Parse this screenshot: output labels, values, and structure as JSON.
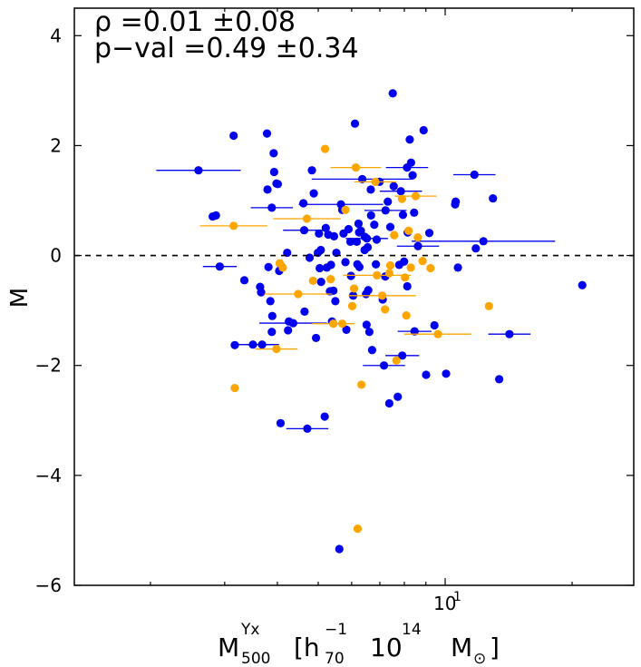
{
  "chart_data": {
    "type": "scatter",
    "x_scale": "log",
    "xlabel": {
      "base": "M",
      "sup": "Yx",
      "sub": "500",
      "units_text": "[h",
      "units_sup": "−1",
      "units_sub": "70",
      "units_mid": "10",
      "units_mid_sup": "14",
      "units_end": "M",
      "units_end_sub": "⊙",
      "close": "]"
    },
    "ylabel": "M",
    "xlim": [
      1.32,
      28.0
    ],
    "ylim": [
      -6,
      4.5
    ],
    "x_tick_labels": [
      {
        "base": "10",
        "sup": "1",
        "value": 10
      }
    ],
    "y_ticks": [
      4,
      2,
      0,
      -2,
      -4,
      -6
    ],
    "y_tick_labels": [
      "4",
      "2",
      "0",
      "−2",
      "−4",
      "−6"
    ],
    "reference_line": {
      "y": 0,
      "style": "dashed"
    },
    "stats": {
      "line1": "ρ =0.01 ±0.08",
      "line2": "p−val =0.49 ±0.34"
    },
    "series": [
      {
        "name": "blue",
        "color": "#0000ee",
        "points": [
          [
            2.6,
            1.55,
            0.1
          ],
          [
            2.81,
            0.71,
            0
          ],
          [
            2.86,
            0.73,
            0
          ],
          [
            2.92,
            -0.2,
            0.04
          ],
          [
            3.15,
            2.18,
            0
          ],
          [
            3.17,
            -1.63,
            0
          ],
          [
            3.34,
            -0.45,
            0
          ],
          [
            3.5,
            -1.62,
            0.05
          ],
          [
            3.68,
            -1.62,
            0.04
          ],
          [
            3.64,
            -0.57,
            0
          ],
          [
            3.66,
            -0.67,
            0
          ],
          [
            3.78,
            2.22,
            0
          ],
          [
            3.79,
            1.2,
            0
          ],
          [
            3.81,
            -0.21,
            0
          ],
          [
            3.85,
            -0.83,
            0
          ],
          [
            3.88,
            -1.39,
            0
          ],
          [
            3.89,
            -1.1,
            0
          ],
          [
            3.88,
            0.87,
            0.05
          ],
          [
            3.92,
            1.86,
            0
          ],
          [
            3.93,
            1.52,
            0
          ],
          [
            3.98,
            1.31,
            0
          ],
          [
            4.01,
            1.3,
            0
          ],
          [
            4.04,
            -0.28,
            0
          ],
          [
            4.07,
            -3.05,
            0
          ],
          [
            4.09,
            -0.2,
            0
          ],
          [
            4.22,
            0.05,
            0
          ],
          [
            4.24,
            -1.36,
            0
          ],
          [
            4.26,
            -1.2,
            0
          ],
          [
            4.36,
            -1.23,
            0.08
          ],
          [
            4.61,
            0.95,
            0
          ],
          [
            4.63,
            0.46,
            0.05
          ],
          [
            4.64,
            -1.02,
            0
          ],
          [
            4.71,
            -3.15,
            0.05
          ],
          [
            4.77,
            -0.04,
            0
          ],
          [
            4.83,
            1.55,
            0
          ],
          [
            4.88,
            1.13,
            0
          ],
          [
            4.94,
            -1.5,
            0
          ],
          [
            4.99,
            0.05,
            0
          ],
          [
            5.02,
            0.4,
            0
          ],
          [
            5.04,
            -0.23,
            0
          ],
          [
            5.07,
            0.1,
            0
          ],
          [
            5.08,
            -0.48,
            0
          ],
          [
            5.18,
            -2.93,
            0
          ],
          [
            5.21,
            0.5,
            0
          ],
          [
            5.24,
            -0.22,
            0
          ],
          [
            5.28,
            0.38,
            0
          ],
          [
            5.33,
            -0.65,
            0
          ],
          [
            5.36,
            -0.17,
            0
          ],
          [
            5.39,
            -1.2,
            0
          ],
          [
            5.43,
            -0.64,
            0
          ],
          [
            5.45,
            0.35,
            0
          ],
          [
            5.49,
            -0.83,
            0
          ],
          [
            5.52,
            0.05,
            0
          ],
          [
            5.61,
            -5.34,
            0
          ],
          [
            5.66,
            0.93,
            0.1
          ],
          [
            5.7,
            0.83,
            0
          ],
          [
            5.74,
            0.4,
            0
          ],
          [
            5.8,
            -0.12,
            0
          ],
          [
            5.83,
            -1.35,
            0
          ],
          [
            5.9,
            0.48,
            0
          ],
          [
            5.96,
            0.25,
            0
          ],
          [
            5.98,
            -0.37,
            0
          ],
          [
            6.05,
            -0.73,
            0
          ],
          [
            6.11,
            2.4,
            0
          ],
          [
            6.17,
            0.25,
            0
          ],
          [
            6.19,
            -0.16,
            0
          ],
          [
            6.23,
            0.58,
            0
          ],
          [
            6.25,
            0.42,
            0
          ],
          [
            6.26,
            -0.21,
            0
          ],
          [
            6.31,
            0.45,
            0
          ],
          [
            6.36,
            1.39,
            0.12
          ],
          [
            6.44,
            0.1,
            0
          ],
          [
            6.49,
            -0.7,
            0
          ],
          [
            6.51,
            -1.26,
            0
          ],
          [
            6.52,
            0.31,
            0.05
          ],
          [
            6.55,
            0.15,
            0
          ],
          [
            6.57,
            -0.63,
            0
          ],
          [
            6.61,
            -1.39,
            0
          ],
          [
            6.66,
            1.2,
            0
          ],
          [
            6.67,
            0.73,
            0
          ],
          [
            6.71,
            -1.72,
            0
          ],
          [
            6.79,
            0.56,
            0
          ],
          [
            6.85,
            -0.16,
            0
          ],
          [
            6.88,
            0.29,
            0
          ],
          [
            6.99,
            1.34,
            0
          ],
          [
            7.11,
            -0.8,
            0
          ],
          [
            7.16,
            -2.0,
            0.05
          ],
          [
            7.21,
            -0.38,
            0
          ],
          [
            7.22,
            0.82,
            0.05
          ],
          [
            7.31,
            0.98,
            0
          ],
          [
            7.37,
            -2.69,
            0
          ],
          [
            7.41,
            0.52,
            0
          ],
          [
            7.51,
            2.95,
            0
          ],
          [
            7.55,
            1.26,
            0
          ],
          [
            7.72,
            -2.57,
            0
          ],
          [
            7.78,
            -0.17,
            0
          ],
          [
            7.85,
            1.17,
            0.05
          ],
          [
            7.91,
            -1.82,
            0.04
          ],
          [
            7.94,
            0.74,
            0
          ],
          [
            7.99,
            -0.11,
            0
          ],
          [
            8.12,
            1.6,
            0.05
          ],
          [
            8.15,
            0.42,
            0
          ],
          [
            8.13,
            -0.56,
            0
          ],
          [
            8.24,
            2.11,
            0
          ],
          [
            8.3,
            1.69,
            0
          ],
          [
            8.37,
            1.46,
            0
          ],
          [
            8.44,
            0.78,
            0
          ],
          [
            8.46,
            -1.38,
            0.04
          ],
          [
            8.62,
            0.17,
            0.05
          ],
          [
            8.89,
            2.28,
            0
          ],
          [
            9.01,
            -2.17,
            0
          ],
          [
            9.17,
            0.41,
            0
          ],
          [
            9.43,
            -1.27,
            0
          ],
          [
            10.05,
            -2.15,
            0
          ],
          [
            10.56,
            0.93,
            0
          ],
          [
            10.59,
            0.98,
            0
          ],
          [
            10.72,
            -0.22,
            0
          ],
          [
            11.73,
            1.47,
            0.05
          ],
          [
            11.82,
            0.13,
            0
          ],
          [
            12.98,
            1.04,
            0
          ],
          [
            13.43,
            -2.25,
            0
          ],
          [
            14.2,
            -1.43,
            0.05
          ],
          [
            21.14,
            -0.54,
            0
          ],
          [
            12.32,
            0.26,
            0.17
          ],
          [
            6.45,
            0.34,
            0
          ]
        ]
      },
      {
        "name": "orange",
        "color": "#ffa500",
        "points": [
          [
            3.15,
            0.54,
            0.08
          ],
          [
            3.17,
            -2.41,
            0
          ],
          [
            3.98,
            -1.7,
            0.05
          ],
          [
            4.05,
            -0.14,
            0
          ],
          [
            4.12,
            -0.22,
            0
          ],
          [
            4.48,
            -0.7,
            0.08
          ],
          [
            4.7,
            0.67,
            0.08
          ],
          [
            4.86,
            -0.46,
            0
          ],
          [
            5.19,
            1.94,
            0
          ],
          [
            5.35,
            -0.43,
            0
          ],
          [
            5.43,
            -1.24,
            0.05
          ],
          [
            5.7,
            -1.24,
            0
          ],
          [
            5.8,
            0.83,
            0
          ],
          [
            6.02,
            -0.92,
            0
          ],
          [
            6.08,
            -0.6,
            0
          ],
          [
            6.14,
            1.6,
            0.06
          ],
          [
            6.2,
            -4.97,
            0
          ],
          [
            6.33,
            -2.35,
            0
          ],
          [
            6.83,
            1.34,
            0.05
          ],
          [
            6.89,
            -0.36,
            0.08
          ],
          [
            7.09,
            -0.73,
            0.08
          ],
          [
            7.2,
            -0.98,
            0
          ],
          [
            7.37,
            -0.32,
            0
          ],
          [
            7.41,
            -0.18,
            0
          ],
          [
            7.57,
            0.37,
            0
          ],
          [
            7.66,
            -1.91,
            0
          ],
          [
            7.9,
            1.03,
            0
          ],
          [
            8.03,
            -0.4,
            0
          ],
          [
            8.09,
            -1.09,
            0
          ],
          [
            8.19,
            0.45,
            0
          ],
          [
            8.29,
            -0.22,
            0
          ],
          [
            8.51,
            1.08,
            0.05
          ],
          [
            8.61,
            0.33,
            0
          ],
          [
            8.84,
            -0.1,
            0
          ],
          [
            9.23,
            -0.23,
            0
          ],
          [
            9.61,
            -1.43,
            0.08
          ],
          [
            12.7,
            -0.92,
            0
          ]
        ]
      }
    ]
  }
}
